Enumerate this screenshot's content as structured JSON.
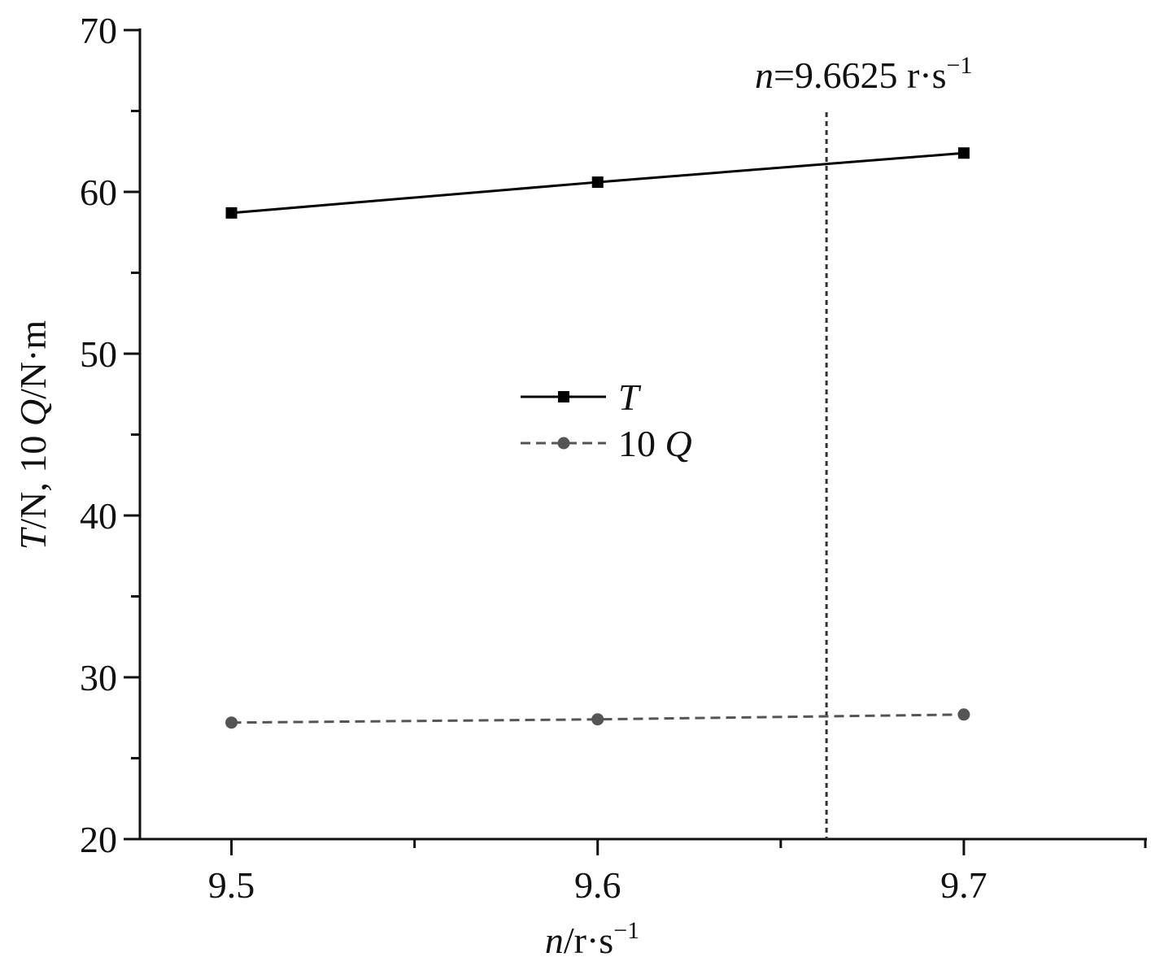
{
  "chart_data": {
    "type": "line",
    "x_tick_labels": [
      "9.5",
      "9.6",
      "9.7"
    ],
    "y_tick_labels": [
      "20",
      "30",
      "40",
      "50",
      "60",
      "70"
    ],
    "xlim": [
      9.475,
      9.75
    ],
    "ylim": [
      20,
      70
    ],
    "x_ticks": [
      9.5,
      9.6,
      9.7
    ],
    "x_minor_ticks": [
      9.55,
      9.65,
      9.75
    ],
    "y_ticks": [
      20,
      30,
      40,
      50,
      60,
      70
    ],
    "y_minor_ticks": [
      25,
      35,
      45,
      55,
      65
    ],
    "xlabel": {
      "var": "n",
      "unit": "/r·s",
      "sup": "−1"
    },
    "ylabel": {
      "v1": "T",
      "u1": "/N, 10 ",
      "v2": "Q",
      "u2": "/N·m"
    },
    "series": [
      {
        "name_var": "T",
        "name_prefix": "",
        "x": [
          9.5,
          9.6,
          9.7
        ],
        "y": [
          58.7,
          60.6,
          62.4
        ],
        "color": "#000000",
        "dash": false,
        "marker": "square"
      },
      {
        "name_var": "Q",
        "name_prefix": "10 ",
        "x": [
          9.5,
          9.6,
          9.7
        ],
        "y": [
          27.2,
          27.4,
          27.7
        ],
        "color": "#555555",
        "dash": true,
        "marker": "circle"
      }
    ],
    "vline": {
      "x": 9.6625,
      "label_var": "n",
      "label_rest": "=9.6625 r·s",
      "label_sup": "−1",
      "color": "#333333"
    },
    "legend_placement": "center",
    "grid": false
  }
}
